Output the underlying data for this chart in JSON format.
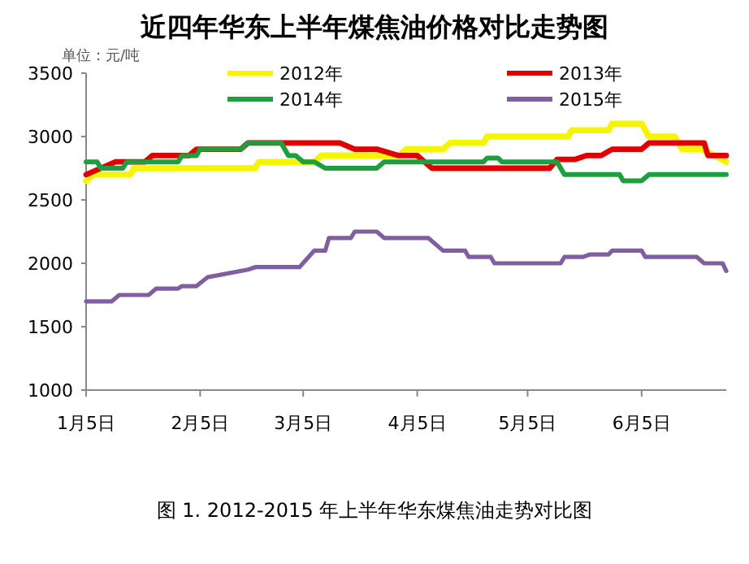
{
  "chart_data": {
    "type": "line",
    "title": "近四年华东上半年煤焦油价格对比走势图",
    "ylabel": "单位：元/吨",
    "annotations": [
      "图 1. 2012-2015 年上半年华东煤焦油走势对比图"
    ],
    "xlim": [
      "--01-05",
      "--06-28"
    ],
    "xticks": [
      {
        "value": "--01-05",
        "label": "1月5日"
      },
      {
        "value": "--02-05",
        "label": "2月5日"
      },
      {
        "value": "--03-05",
        "label": "3月5日"
      },
      {
        "value": "--04-05",
        "label": "4月5日"
      },
      {
        "value": "--05-05",
        "label": "5月5日"
      },
      {
        "value": "--06-05",
        "label": "6月5日"
      }
    ],
    "ylim": [
      1000,
      3500
    ],
    "yticks": [
      1000,
      1500,
      2000,
      2500,
      3000,
      3500
    ],
    "grid": false,
    "legend": "top",
    "marker": "none",
    "line_style": "solid",
    "series": [
      {
        "name": "2012年",
        "color": "#f5f500",
        "x": [
          "--01-05",
          "--01-07",
          "--01-17",
          "--01-18",
          "--02-20",
          "--02-21",
          "--03-08",
          "--03-10",
          "--03-31",
          "--04-02",
          "--04-12",
          "--04-14",
          "--04-23",
          "--04-24",
          "--05-16",
          "--05-17",
          "--05-27",
          "--05-28",
          "--06-05",
          "--06-07",
          "--06-14",
          "--06-16",
          "--06-21",
          "--06-25",
          "--06-28"
        ],
        "values": [
          2650,
          2700,
          2700,
          2750,
          2750,
          2800,
          2800,
          2850,
          2850,
          2900,
          2900,
          2950,
          2950,
          3000,
          3000,
          3050,
          3050,
          3100,
          3100,
          3000,
          3000,
          2900,
          2900,
          2850,
          2800
        ]
      },
      {
        "name": "2013年",
        "color": "#e00000",
        "x": [
          "--01-05",
          "--01-09",
          "--01-13",
          "--01-21",
          "--01-23",
          "--02-02",
          "--02-04",
          "--02-16",
          "--02-18",
          "--03-15",
          "--03-19",
          "--03-25",
          "--03-31",
          "--04-05",
          "--04-09",
          "--05-11",
          "--05-13",
          "--05-18",
          "--05-21",
          "--05-25",
          "--05-28",
          "--06-05",
          "--06-07",
          "--06-22",
          "--06-23",
          "--06-28"
        ],
        "values": [
          2700,
          2750,
          2800,
          2800,
          2850,
          2850,
          2900,
          2900,
          2950,
          2950,
          2900,
          2900,
          2850,
          2850,
          2750,
          2750,
          2820,
          2820,
          2850,
          2850,
          2900,
          2900,
          2950,
          2950,
          2850,
          2850
        ]
      },
      {
        "name": "2014年",
        "color": "#1e9e3e",
        "x": [
          "--01-05",
          "--01-08",
          "--01-09",
          "--01-15",
          "--01-16",
          "--01-30",
          "--01-31",
          "--02-04",
          "--02-05",
          "--02-16",
          "--02-18",
          "--02-27",
          "--03-01",
          "--03-03",
          "--03-05",
          "--03-08",
          "--03-11",
          "--03-25",
          "--03-27",
          "--04-23",
          "--04-24",
          "--04-27",
          "--04-28",
          "--05-13",
          "--05-15",
          "--05-30",
          "--05-31",
          "--06-05",
          "--06-07",
          "--06-28"
        ],
        "values": [
          2800,
          2800,
          2750,
          2750,
          2800,
          2800,
          2850,
          2850,
          2900,
          2900,
          2950,
          2950,
          2850,
          2850,
          2800,
          2800,
          2750,
          2750,
          2800,
          2800,
          2830,
          2830,
          2800,
          2800,
          2700,
          2700,
          2650,
          2650,
          2700,
          2700
        ]
      },
      {
        "name": "2015年",
        "color": "#7f5f9f",
        "x": [
          "--01-05",
          "--01-12",
          "--01-14",
          "--01-22",
          "--01-24",
          "--01-30",
          "--01-31",
          "--02-04",
          "--02-07",
          "--02-18",
          "--02-20",
          "--03-04",
          "--03-08",
          "--03-11",
          "--03-12",
          "--03-18",
          "--03-19",
          "--03-25",
          "--03-27",
          "--04-08",
          "--04-12",
          "--04-18",
          "--04-19",
          "--04-25",
          "--04-26",
          "--05-14",
          "--05-15",
          "--05-20",
          "--05-22",
          "--05-27",
          "--05-28",
          "--06-05",
          "--06-06",
          "--06-20",
          "--06-22",
          "--06-27",
          "--06-28"
        ],
        "values": [
          1700,
          1700,
          1750,
          1750,
          1800,
          1800,
          1820,
          1820,
          1890,
          1950,
          1970,
          1970,
          2100,
          2100,
          2200,
          2200,
          2250,
          2250,
          2200,
          2200,
          2100,
          2100,
          2050,
          2050,
          2000,
          2000,
          2050,
          2050,
          2070,
          2070,
          2100,
          2100,
          2050,
          2050,
          2000,
          2000,
          1940
        ]
      }
    ]
  }
}
